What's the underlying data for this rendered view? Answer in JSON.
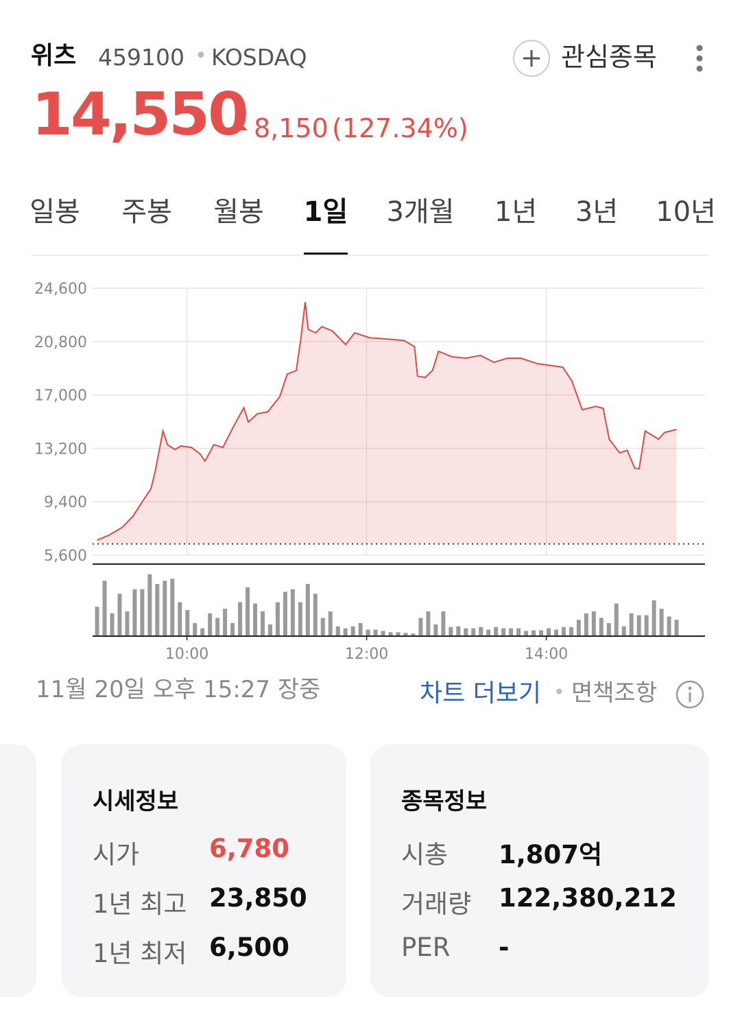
{
  "header": {
    "name": "위츠",
    "code": "459100",
    "market": "KOSDAQ",
    "watch": "관심종목"
  },
  "price": {
    "current": "14,550",
    "change": "8,150",
    "change_pct": "(127.34%)"
  },
  "tabs": {
    "items": [
      "일봉",
      "주봉",
      "월봉",
      "1일",
      "3개월",
      "1년",
      "3년",
      "10년"
    ],
    "active": 3
  },
  "chart_data": {
    "type": "line",
    "color": "#dc4a44",
    "x": [
      540,
      548,
      557,
      564,
      569,
      576,
      579,
      584,
      587,
      592,
      596,
      603,
      609,
      612,
      618,
      624,
      631,
      638,
      641,
      647,
      654,
      662,
      667,
      673,
      676,
      679,
      681,
      686,
      690,
      697,
      706,
      712,
      722,
      734,
      745,
      752,
      754,
      759,
      764,
      768,
      777,
      786,
      796,
      805,
      814,
      823,
      834,
      841,
      851,
      857,
      864,
      873,
      878,
      882,
      889,
      894,
      899,
      902,
      906,
      915,
      919,
      923,
      927
    ],
    "values": [
      6670,
      7020,
      7600,
      8380,
      9210,
      10340,
      11660,
      14440,
      13460,
      13120,
      13370,
      13270,
      12780,
      12290,
      13460,
      13270,
      14730,
      16100,
      15080,
      15660,
      15810,
      16880,
      18490,
      18740,
      20940,
      23620,
      21670,
      21420,
      21860,
      21570,
      20590,
      21420,
      21080,
      20980,
      20880,
      20450,
      18340,
      18250,
      18740,
      20110,
      19720,
      19620,
      19820,
      19330,
      19620,
      19620,
      19230,
      19130,
      18980,
      18010,
      15950,
      16190,
      16050,
      13850,
      12880,
      13070,
      11800,
      11750,
      14440,
      13850,
      14340,
      14440,
      14550
    ],
    "xlim": [
      537,
      946
    ],
    "xticks": [
      {
        "value": 600,
        "label": "10:00"
      },
      {
        "value": 720,
        "label": "12:00"
      },
      {
        "value": 840,
        "label": "14:00"
      }
    ],
    "ylim": [
      5600,
      24600
    ],
    "yticks": [
      {
        "value": 5600,
        "label": "5,600"
      },
      {
        "value": 9400,
        "label": "9,400"
      },
      {
        "value": 13200,
        "label": "13,200"
      },
      {
        "value": 17000,
        "label": "17,000"
      },
      {
        "value": 20800,
        "label": "20,800"
      },
      {
        "value": 24600,
        "label": "24,600"
      }
    ],
    "grid": true,
    "prev_close": 6400,
    "volume": {
      "color": "#9a9a9a",
      "ylim": [
        0,
        100
      ],
      "values": [
        45,
        85,
        35,
        65,
        38,
        72,
        72,
        95,
        80,
        85,
        88,
        52,
        40,
        20,
        12,
        35,
        28,
        42,
        20,
        52,
        75,
        50,
        38,
        18,
        52,
        68,
        72,
        52,
        80,
        65,
        28,
        38,
        15,
        12,
        15,
        20,
        10,
        10,
        8,
        6,
        6,
        5,
        4,
        28,
        38,
        18,
        38,
        14,
        15,
        12,
        12,
        14,
        10,
        14,
        12,
        12,
        12,
        8,
        9,
        9,
        12,
        10,
        14,
        14,
        25,
        35,
        38,
        28,
        20,
        50,
        15,
        35,
        32,
        32,
        55,
        42,
        30,
        25
      ]
    }
  },
  "footer": {
    "timestamp": "11월 20일 오후 15:27 장중",
    "more": "차트 더보기",
    "disclaimer": "면책조항"
  },
  "cards": [
    {
      "title": "시세정보",
      "rows": [
        [
          "시가",
          "6,780"
        ],
        [
          "1년 최고",
          "23,850"
        ],
        [
          "1년 최저",
          "6,500"
        ]
      ]
    },
    {
      "title": "종목정보",
      "rows": [
        [
          "시총",
          "1,807억"
        ],
        [
          "거래량",
          "122,380,212"
        ],
        [
          "PER",
          "-"
        ]
      ]
    }
  ]
}
